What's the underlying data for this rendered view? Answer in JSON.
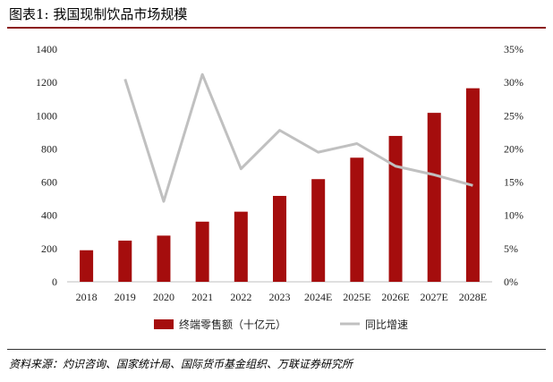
{
  "header": {
    "title": "图表1: 我国现制饮品市场规模"
  },
  "footer": {
    "source": "资料来源：灼识咨询、国家统计局、国际货币基金组织、万联证券研究所"
  },
  "colors": {
    "bar": "#a50d0d",
    "line": "#c0c0c0",
    "accent_rule": "#8b1a1a"
  },
  "chart_data": {
    "type": "bar",
    "categories": [
      "2018",
      "2019",
      "2020",
      "2021",
      "2022",
      "2023",
      "2024E",
      "2025E",
      "2026E",
      "2027E",
      "2028E"
    ],
    "series": [
      {
        "name": "终端零售额（十亿元）",
        "kind": "bar",
        "axis": "left",
        "values": [
          190,
          248,
          278,
          362,
          422,
          517,
          618,
          747,
          878,
          1017,
          1165
        ]
      },
      {
        "name": "同比增速",
        "kind": "line",
        "axis": "right",
        "values": [
          null,
          30.5,
          12.1,
          31.2,
          17.0,
          22.8,
          19.5,
          20.8,
          17.4,
          16.1,
          14.5
        ]
      }
    ],
    "y_left": {
      "ylim": [
        0,
        1400
      ],
      "ticks": [
        "0",
        "200",
        "400",
        "600",
        "800",
        "1000",
        "1200",
        "1400"
      ]
    },
    "y_right": {
      "ylim": [
        0,
        35
      ],
      "ticks": [
        "0%",
        "5%",
        "10%",
        "15%",
        "20%",
        "25%",
        "30%",
        "35%"
      ]
    },
    "grid": false,
    "legend": "bottom"
  }
}
